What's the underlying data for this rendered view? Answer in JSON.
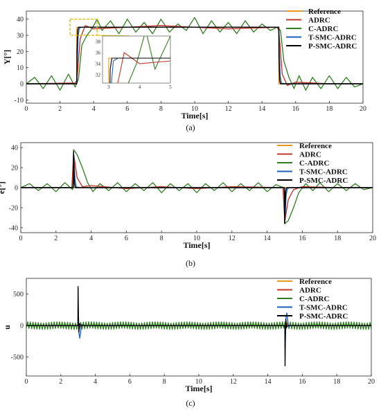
{
  "colors": {
    "Reference": "#e8961e",
    "ADRC": "#c0392b",
    "C-ADRC": "#2e7d1f",
    "T-SMC-ADRC": "#1f5fbf",
    "P-SMC-ADRC": "#000000",
    "zoom_box": "#e0c010"
  },
  "chart_data": [
    {
      "type": "line",
      "caption": "(a)",
      "xlabel": "Time[s]",
      "ylabel": "Y[°]",
      "xlim": [
        0,
        20
      ],
      "ylim": [
        -12,
        45
      ],
      "xticks": [
        0,
        2,
        4,
        6,
        8,
        10,
        12,
        14,
        16,
        18,
        20
      ],
      "yticks": [
        -10,
        0,
        10,
        20,
        30,
        40
      ],
      "legend": [
        "Reference",
        "ADRC",
        "C-ADRC",
        "T-SMC-ADRC",
        "P-SMC-ADRC"
      ],
      "legend_position": "top-right",
      "series": [
        {
          "name": "Reference",
          "x": [
            0,
            3,
            3,
            15,
            15,
            20
          ],
          "y": [
            0,
            0,
            35,
            35,
            0,
            0
          ]
        },
        {
          "name": "ADRC",
          "x": [
            0,
            2.9,
            3.0,
            3.2,
            3.5,
            4,
            6,
            8,
            10,
            12,
            14.9,
            15.0,
            15.2,
            15.5,
            16,
            18,
            20
          ],
          "y": [
            0,
            0.5,
            2,
            28,
            36,
            34,
            35,
            36,
            35,
            34,
            35,
            33,
            6,
            -1,
            1,
            0,
            0
          ]
        },
        {
          "name": "C-ADRC",
          "x": [
            0,
            0.5,
            1,
            1.5,
            2,
            2.5,
            2.9,
            3.1,
            3.3,
            3.6,
            3.9,
            4.2,
            4.5,
            5,
            5.5,
            6,
            6.5,
            7,
            7.5,
            8,
            8.5,
            9,
            9.5,
            10,
            10.5,
            11,
            11.5,
            12,
            12.5,
            13,
            13.5,
            14,
            14.5,
            14.9,
            15.1,
            15.3,
            15.6,
            15.9,
            16.2,
            16.6,
            17,
            17.5,
            18,
            18.5,
            19,
            19.5,
            20
          ],
          "y": [
            0,
            4,
            -3,
            5,
            -4,
            6,
            -2,
            3,
            24,
            30,
            34,
            40,
            33,
            39,
            31,
            40,
            32,
            38,
            31,
            40,
            32,
            37,
            33,
            41,
            31,
            39,
            32,
            38,
            31,
            39,
            32,
            37,
            33,
            35,
            33,
            14,
            4,
            -3,
            5,
            -4,
            4,
            -3,
            5,
            -3,
            4,
            -2,
            0
          ]
        },
        {
          "name": "T-SMC-ADRC",
          "x": [
            0,
            2.99,
            3.02,
            3.08,
            3.15,
            3.3,
            5,
            10,
            14.99,
            15.02,
            15.08,
            15.15,
            15.3,
            20
          ],
          "y": [
            0,
            0,
            12,
            30,
            34.5,
            35,
            35,
            35,
            35,
            22,
            5,
            0.5,
            0,
            0
          ]
        },
        {
          "name": "P-SMC-ADRC",
          "x": [
            0,
            3.0,
            3.01,
            3.05,
            3.1,
            3.2,
            5,
            10,
            15.0,
            15.01,
            15.05,
            15.1,
            15.2,
            20
          ],
          "y": [
            0,
            0,
            20,
            33,
            35,
            35,
            35,
            35,
            35,
            18,
            2,
            0,
            0,
            0
          ]
        }
      ],
      "inset": {
        "xlim": [
          2.8,
          5
        ],
        "ylim": [
          30.5,
          39
        ],
        "xticks": [
          3,
          4,
          5
        ],
        "yticks": [
          32,
          34,
          36,
          38
        ],
        "zoom_region": {
          "x": [
            2.6,
            4.2
          ],
          "y": [
            30,
            40
          ]
        }
      }
    },
    {
      "type": "line",
      "caption": "(b)",
      "xlabel": "Time[s]",
      "ylabel": "e[°]",
      "xlim": [
        0,
        20
      ],
      "ylim": [
        -45,
        45
      ],
      "xticks": [
        0,
        2,
        4,
        6,
        8,
        10,
        12,
        14,
        16,
        18,
        20
      ],
      "yticks": [
        -40,
        -20,
        0,
        20,
        40
      ],
      "legend": [
        "Reference",
        "ADRC",
        "C-ADRC",
        "T-SMC-ADRC",
        "P-SMC-ADRC"
      ],
      "legend_position": "top-right",
      "series": [
        {
          "name": "Reference",
          "x": [
            0,
            20
          ],
          "y": [
            0,
            0
          ]
        },
        {
          "name": "ADRC",
          "x": [
            0,
            2.9,
            3.0,
            3.2,
            3.5,
            4,
            6,
            8,
            10,
            12,
            14.9,
            15.0,
            15.2,
            15.5,
            16,
            18,
            20
          ],
          "y": [
            0,
            0,
            34,
            10,
            1,
            2,
            -1,
            1,
            -1,
            1,
            0,
            -34,
            -12,
            -2,
            1,
            0,
            0
          ]
        },
        {
          "name": "C-ADRC",
          "x": [
            0,
            0.5,
            1,
            1.5,
            2,
            2.5,
            2.95,
            3.0,
            3.2,
            3.5,
            3.8,
            4.1,
            4.5,
            5,
            5.5,
            6,
            6.5,
            7,
            7.5,
            8,
            8.5,
            9,
            9.5,
            10,
            10.5,
            11,
            11.5,
            12,
            12.5,
            13,
            13.5,
            14,
            14.5,
            14.95,
            15.0,
            15.2,
            15.5,
            15.8,
            16.2,
            16.6,
            17,
            17.5,
            18,
            18.5,
            19,
            19.5,
            20
          ],
          "y": [
            0,
            4,
            -3,
            4,
            -4,
            5,
            -2,
            38,
            33,
            20,
            5,
            -4,
            4,
            -3,
            5,
            -4,
            4,
            -3,
            5,
            -5,
            4,
            -3,
            4,
            -5,
            4,
            -3,
            5,
            -4,
            4,
            -3,
            5,
            -4,
            3,
            0,
            -36,
            -33,
            -20,
            -5,
            4,
            -3,
            5,
            -4,
            4,
            -3,
            4,
            -2,
            0
          ]
        },
        {
          "name": "T-SMC-ADRC",
          "x": [
            0,
            2.99,
            3.0,
            3.08,
            3.15,
            3.3,
            14.99,
            15.0,
            15.08,
            15.15,
            15.3,
            20
          ],
          "y": [
            0,
            0,
            35,
            8,
            1,
            0,
            0,
            -35,
            -8,
            -1,
            0,
            0
          ]
        },
        {
          "name": "P-SMC-ADRC",
          "x": [
            0,
            2.99,
            3.0,
            3.05,
            3.1,
            3.2,
            14.99,
            15.0,
            15.05,
            15.1,
            15.2,
            20
          ],
          "y": [
            0,
            0,
            36,
            4,
            0,
            0,
            0,
            -36,
            -4,
            0,
            0,
            0
          ]
        }
      ]
    },
    {
      "type": "line",
      "caption": "(c)",
      "xlabel": "Time[s]",
      "ylabel": "u",
      "xlim": [
        0,
        20
      ],
      "ylim": [
        -800,
        750
      ],
      "xticks": [
        0,
        2,
        4,
        6,
        8,
        10,
        12,
        14,
        16,
        18,
        20
      ],
      "yticks": [
        -500,
        0,
        500
      ],
      "legend": [
        "Reference",
        "ADRC",
        "C-ADRC",
        "T-SMC-ADRC",
        "P-SMC-ADRC"
      ],
      "legend_position": "top-right",
      "series": [
        {
          "name": "Reference",
          "x": [
            0,
            20
          ],
          "y": [
            0,
            0
          ]
        },
        {
          "name": "ADRC",
          "x": [
            0,
            2.99,
            3.0,
            3.05,
            3.2,
            14.99,
            15.0,
            15.05,
            15.2,
            20
          ],
          "y": [
            0,
            0,
            90,
            -40,
            0,
            0,
            -90,
            40,
            0,
            0
          ]
        },
        {
          "name": "C-ADRC",
          "band": 60,
          "x": [
            0,
            20
          ],
          "y": [
            0,
            0
          ]
        },
        {
          "name": "T-SMC-ADRC",
          "x": [
            0,
            2.99,
            3.0,
            3.05,
            3.1,
            3.2,
            3.3,
            14.99,
            15.0,
            15.05,
            15.1,
            15.2,
            15.3,
            20
          ],
          "y": [
            0,
            0,
            380,
            -120,
            -200,
            20,
            0,
            0,
            -380,
            120,
            200,
            -20,
            0,
            0
          ]
        },
        {
          "name": "P-SMC-ADRC",
          "x": [
            0,
            2.99,
            3.0,
            3.02,
            3.05,
            3.08,
            3.15,
            14.99,
            15.0,
            15.02,
            15.05,
            15.08,
            15.15,
            20
          ],
          "y": [
            0,
            0,
            620,
            150,
            -100,
            30,
            0,
            0,
            -640,
            -150,
            100,
            -30,
            0,
            0
          ]
        }
      ]
    }
  ]
}
